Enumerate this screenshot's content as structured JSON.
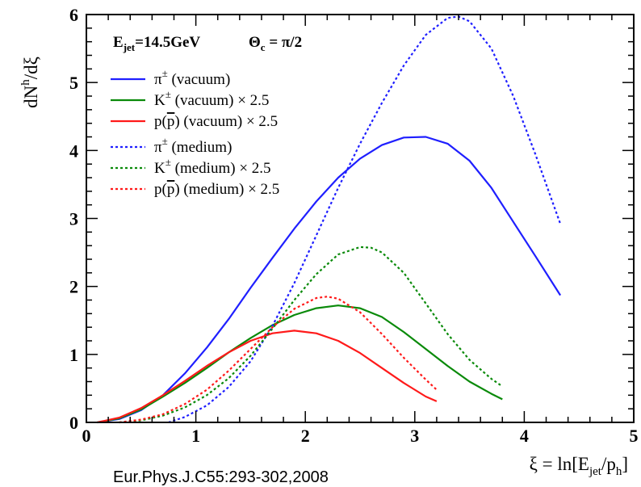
{
  "chart_data": {
    "type": "line",
    "header": {
      "energy": "E",
      "energy_sub": "jet",
      "energy_value": "=14.5GeV",
      "angle": "Θ",
      "angle_sub": "c",
      "angle_value": " = π/2"
    },
    "xlabel": {
      "main": "ξ = ln[E",
      "sub1": "jet",
      "mid": "/p",
      "sub2": "h",
      "end": "]"
    },
    "ylabel": {
      "a": "dN",
      "sup": "h",
      "b": "/dξ"
    },
    "xlim": [
      0,
      5
    ],
    "ylim": [
      0,
      6
    ],
    "x_ticks": [
      "0",
      "1",
      "2",
      "3",
      "4",
      "5"
    ],
    "y_ticks": [
      "0",
      "1",
      "2",
      "3",
      "4",
      "5",
      "6"
    ],
    "legend_position": "top-left",
    "grid": false,
    "footnote": "Eur.Phys.J.C55:293-302,2008",
    "series": [
      {
        "particle": "π",
        "sup": "±",
        "pbar": false,
        "label": "  (vacuum)",
        "factor": "",
        "color": "#1f1fff",
        "dashed": false,
        "x": [
          0.1,
          0.3,
          0.5,
          0.7,
          0.9,
          1.1,
          1.3,
          1.5,
          1.7,
          1.9,
          2.1,
          2.3,
          2.5,
          2.7,
          2.9,
          3.1,
          3.3,
          3.5,
          3.7,
          3.9,
          4.1,
          4.33
        ],
        "y": [
          0.0,
          0.05,
          0.18,
          0.4,
          0.72,
          1.1,
          1.52,
          1.98,
          2.42,
          2.85,
          3.25,
          3.6,
          3.88,
          4.08,
          4.19,
          4.2,
          4.1,
          3.85,
          3.45,
          2.95,
          2.45,
          1.87
        ]
      },
      {
        "particle": "K",
        "sup": "±",
        "pbar": false,
        "label": "  (vacuum)",
        "factor": "× 2.5",
        "color": "#0a8a0a",
        "dashed": false,
        "x": [
          0.1,
          0.3,
          0.5,
          0.7,
          0.9,
          1.1,
          1.3,
          1.5,
          1.7,
          1.9,
          2.1,
          2.3,
          2.5,
          2.7,
          2.9,
          3.1,
          3.3,
          3.5,
          3.7,
          3.8
        ],
        "y": [
          0.0,
          0.06,
          0.19,
          0.38,
          0.58,
          0.8,
          1.03,
          1.24,
          1.43,
          1.58,
          1.68,
          1.72,
          1.68,
          1.55,
          1.33,
          1.08,
          0.83,
          0.6,
          0.42,
          0.34
        ]
      },
      {
        "particle": "p(",
        "sup": "",
        "pbar": true,
        "label": ") (vacuum)",
        "factor": "× 2.5",
        "color": "#ff1a1a",
        "dashed": false,
        "x": [
          0.1,
          0.3,
          0.5,
          0.7,
          0.9,
          1.1,
          1.3,
          1.5,
          1.7,
          1.9,
          2.1,
          2.3,
          2.5,
          2.7,
          2.9,
          3.1,
          3.2
        ],
        "y": [
          0.0,
          0.07,
          0.21,
          0.4,
          0.61,
          0.83,
          1.03,
          1.2,
          1.31,
          1.35,
          1.31,
          1.2,
          1.02,
          0.8,
          0.58,
          0.38,
          0.31
        ]
      },
      {
        "particle": "π",
        "sup": "±",
        "pbar": false,
        "label": "  (medium)",
        "factor": "",
        "color": "#1f1fff",
        "dashed": true,
        "x": [
          0.75,
          0.9,
          1.1,
          1.3,
          1.5,
          1.7,
          1.9,
          2.1,
          2.3,
          2.5,
          2.7,
          2.9,
          3.1,
          3.3,
          3.4,
          3.5,
          3.7,
          3.9,
          4.1,
          4.33
        ],
        "y": [
          0.0,
          0.08,
          0.25,
          0.52,
          0.9,
          1.42,
          2.05,
          2.75,
          3.45,
          4.1,
          4.7,
          5.25,
          5.7,
          5.95,
          5.97,
          5.9,
          5.5,
          4.8,
          3.95,
          2.92
        ]
      },
      {
        "particle": "K",
        "sup": "±",
        "pbar": false,
        "label": "  (medium) ",
        "factor": "× 2.5",
        "color": "#0a8a0a",
        "dashed": true,
        "x": [
          0.3,
          0.5,
          0.7,
          0.9,
          1.1,
          1.3,
          1.5,
          1.7,
          1.9,
          2.1,
          2.3,
          2.5,
          2.6,
          2.7,
          2.9,
          3.1,
          3.3,
          3.5,
          3.7,
          3.8
        ],
        "y": [
          0.0,
          0.03,
          0.1,
          0.22,
          0.4,
          0.65,
          0.98,
          1.38,
          1.8,
          2.18,
          2.47,
          2.58,
          2.57,
          2.5,
          2.2,
          1.75,
          1.3,
          0.92,
          0.64,
          0.53
        ]
      },
      {
        "particle": "p(",
        "sup": "",
        "pbar": true,
        "label": ") (medium) ",
        "factor": "× 2.5",
        "color": "#ff1a1a",
        "dashed": true,
        "x": [
          0.3,
          0.5,
          0.7,
          0.9,
          1.1,
          1.3,
          1.5,
          1.7,
          1.9,
          2.1,
          2.2,
          2.3,
          2.5,
          2.7,
          2.9,
          3.1,
          3.2
        ],
        "y": [
          0.0,
          0.04,
          0.12,
          0.27,
          0.48,
          0.76,
          1.08,
          1.4,
          1.67,
          1.83,
          1.85,
          1.82,
          1.62,
          1.3,
          0.95,
          0.63,
          0.48
        ]
      }
    ]
  }
}
